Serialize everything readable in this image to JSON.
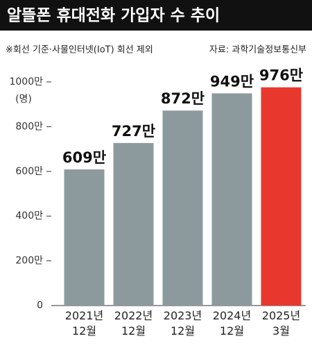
{
  "chart_data": {
    "type": "bar",
    "title": "알뜰폰 휴대전화 가입자 수 추이",
    "subtitle": "※회선 기준·사물인터넷(IoT) 회선 제외",
    "source": "자료: 과학기술정보통신부",
    "y_unit": "(명)",
    "categories": [
      "2021년\n12월",
      "2022년\n12월",
      "2023년\n12월",
      "2024년\n12월",
      "2025년\n3월"
    ],
    "values": [
      609,
      727,
      872,
      949,
      976
    ],
    "value_labels": [
      "609만",
      "727만",
      "872만",
      "949만",
      "976만"
    ],
    "colors": [
      "#8d9a9d",
      "#8d9a9d",
      "#8d9a9d",
      "#8d9a9d",
      "#e8382e"
    ],
    "ylim": [
      0,
      1000
    ],
    "yticks": [
      {
        "value": 0,
        "label": "0"
      },
      {
        "value": 200,
        "label": "200만"
      },
      {
        "value": 400,
        "label": "400만"
      },
      {
        "value": 600,
        "label": "600만"
      },
      {
        "value": 800,
        "label": "800만"
      },
      {
        "value": 1000,
        "label": "1000만"
      }
    ]
  }
}
